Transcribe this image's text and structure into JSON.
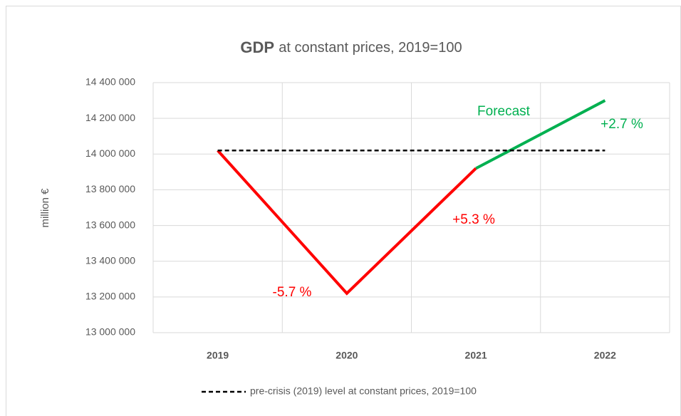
{
  "chart_data": {
    "type": "line",
    "title": {
      "bold": "GDP",
      "rest": "at constant prices, 2019=100"
    },
    "y_label": "million €",
    "categories": [
      "2019",
      "2020",
      "2021",
      "2022"
    ],
    "ylim": [
      13000000,
      14400000
    ],
    "yticks": [
      {
        "value": 13000000,
        "label": "13 000 000"
      },
      {
        "value": 13200000,
        "label": "13 200 000"
      },
      {
        "value": 13400000,
        "label": "13 400 000"
      },
      {
        "value": 13600000,
        "label": "13 600 000"
      },
      {
        "value": 13800000,
        "label": "13 800 000"
      },
      {
        "value": 14000000,
        "label": "14 000 000"
      },
      {
        "value": 14200000,
        "label": "14 200 000"
      },
      {
        "value": 14400000,
        "label": "14 400 000"
      }
    ],
    "grid": true,
    "series": [
      {
        "color": "#ff0000",
        "values": [
          14020000,
          13220000,
          13920000,
          null
        ]
      },
      {
        "color": "#00b050",
        "values": [
          null,
          null,
          13920000,
          14300000
        ]
      },
      {
        "name": "pre-crisis (2019) level at constant prices, 2019=100",
        "color": "#000000",
        "dashed": true,
        "values": [
          14020000,
          14020000,
          14020000,
          14020000
        ]
      }
    ],
    "annotations": [
      {
        "text": "-5.7 %",
        "color": "#ff0000"
      },
      {
        "text": "+5.3 %",
        "color": "#ff0000"
      },
      {
        "text": "Forecast",
        "color": "#00b050"
      },
      {
        "text": "+2.7 %",
        "color": "#00b050"
      }
    ],
    "legend": "bottom"
  }
}
